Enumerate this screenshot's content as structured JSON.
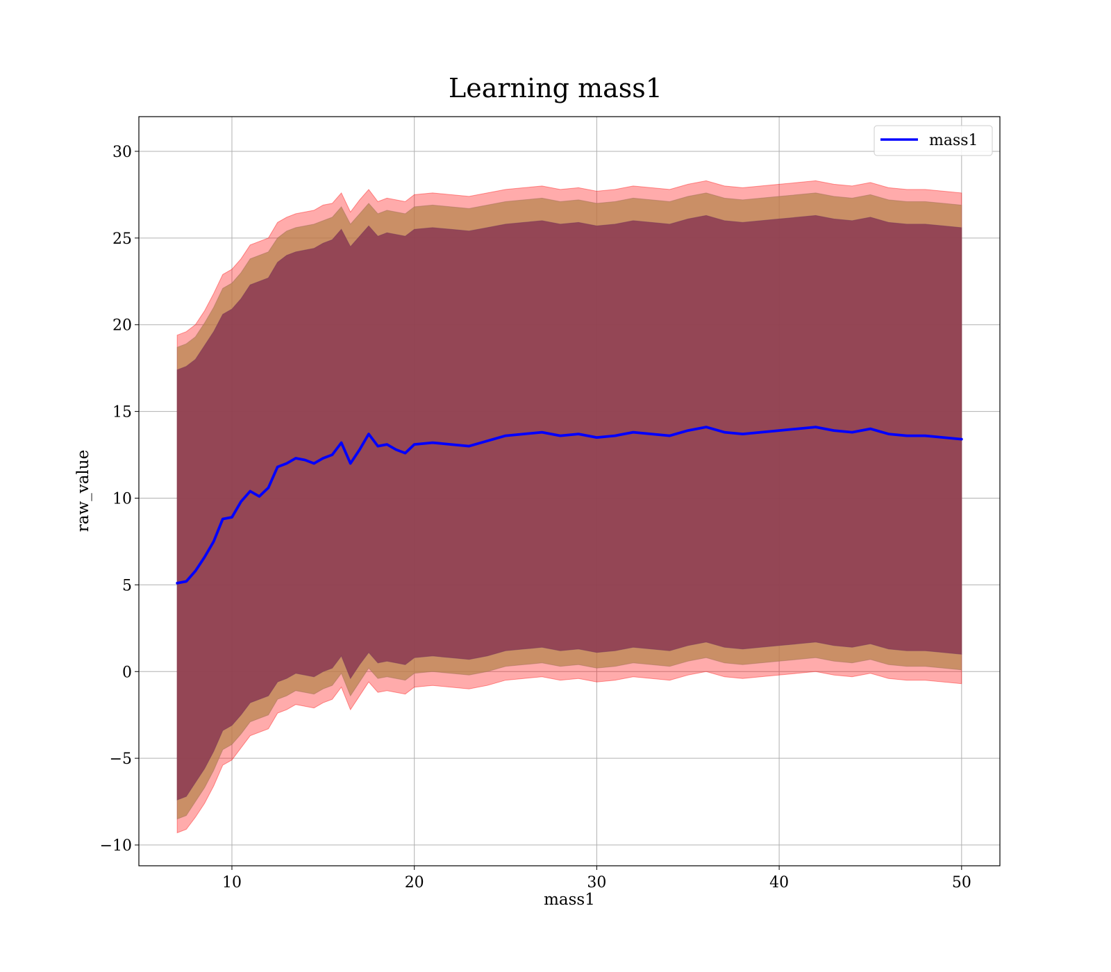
{
  "chart_data": {
    "type": "line",
    "title": "Learning mass1",
    "xlabel": "mass1",
    "ylabel": "raw_value",
    "xlim": [
      4.9,
      52.1
    ],
    "ylim": [
      -11.2,
      32.0
    ],
    "xticks": [
      10,
      20,
      30,
      40,
      50
    ],
    "xtick_labels": [
      "10",
      "20",
      "30",
      "40",
      "50"
    ],
    "yticks": [
      -10,
      -5,
      0,
      5,
      10,
      15,
      20,
      25,
      30
    ],
    "ytick_labels": [
      "−10",
      "−5",
      "0",
      "5",
      "10",
      "15",
      "20",
      "25",
      "30"
    ],
    "grid": true,
    "legend": {
      "position": "top-right",
      "entries": [
        "mass1"
      ]
    },
    "colors": {
      "line": "#0000ff",
      "band_outer": "#ff0000",
      "band_mid": "#b8864f",
      "band_inner": "#8b3a52"
    },
    "x": [
      7.0,
      7.5,
      8.0,
      8.5,
      9.0,
      9.5,
      10.0,
      10.5,
      11.0,
      11.5,
      12.0,
      12.5,
      13.0,
      13.5,
      14.0,
      14.5,
      15.0,
      15.5,
      16.0,
      16.5,
      17.0,
      17.5,
      18.0,
      18.5,
      19.0,
      19.5,
      20.0,
      21.0,
      22.0,
      23.0,
      24.0,
      25.0,
      26.0,
      27.0,
      28.0,
      29.0,
      30.0,
      31.0,
      32.0,
      33.0,
      34.0,
      35.0,
      36.0,
      37.0,
      38.0,
      39.0,
      40.0,
      41.0,
      42.0,
      43.0,
      44.0,
      45.0,
      46.0,
      47.0,
      48.0,
      49.0,
      50.0
    ],
    "series": [
      {
        "name": "mass1",
        "values": [
          5.1,
          5.2,
          5.8,
          6.6,
          7.5,
          8.8,
          8.9,
          9.8,
          10.4,
          10.1,
          10.6,
          11.8,
          12.0,
          12.3,
          12.2,
          12.0,
          12.3,
          12.5,
          13.2,
          12.0,
          12.8,
          13.7,
          13.0,
          13.1,
          12.8,
          12.6,
          13.1,
          13.2,
          13.1,
          13.0,
          13.3,
          13.6,
          13.7,
          13.8,
          13.6,
          13.7,
          13.5,
          13.6,
          13.8,
          13.7,
          13.6,
          13.9,
          14.1,
          13.8,
          13.7,
          13.8,
          13.9,
          14.0,
          14.1,
          13.9,
          13.8,
          14.0,
          13.7,
          13.6,
          13.6,
          13.5,
          13.4
        ]
      }
    ],
    "bands": {
      "outer_upper": [
        19.4,
        19.6,
        20.0,
        20.8,
        21.8,
        22.9,
        23.2,
        23.8,
        24.6,
        24.8,
        25.0,
        25.9,
        26.2,
        26.4,
        26.5,
        26.6,
        26.9,
        27.0,
        27.6,
        26.5,
        27.2,
        27.8,
        27.1,
        27.3,
        27.2,
        27.1,
        27.5,
        27.6,
        27.5,
        27.4,
        27.6,
        27.8,
        27.9,
        28.0,
        27.8,
        27.9,
        27.7,
        27.8,
        28.0,
        27.9,
        27.8,
        28.1,
        28.3,
        28.0,
        27.9,
        28.0,
        28.1,
        28.2,
        28.3,
        28.1,
        28.0,
        28.2,
        27.9,
        27.8,
        27.8,
        27.7,
        27.6
      ],
      "mid_upper": [
        18.7,
        18.9,
        19.3,
        20.1,
        21.0,
        22.1,
        22.4,
        23.0,
        23.8,
        24.0,
        24.2,
        25.0,
        25.4,
        25.6,
        25.7,
        25.8,
        26.0,
        26.2,
        26.8,
        25.8,
        26.4,
        27.0,
        26.4,
        26.6,
        26.5,
        26.4,
        26.8,
        26.9,
        26.8,
        26.7,
        26.9,
        27.1,
        27.2,
        27.3,
        27.1,
        27.2,
        27.0,
        27.1,
        27.3,
        27.2,
        27.1,
        27.4,
        27.6,
        27.3,
        27.2,
        27.3,
        27.4,
        27.5,
        27.6,
        27.4,
        27.3,
        27.5,
        27.2,
        27.1,
        27.1,
        27.0,
        26.9
      ],
      "inner_upper": [
        17.4,
        17.6,
        18.0,
        18.8,
        19.6,
        20.6,
        20.9,
        21.5,
        22.3,
        22.5,
        22.7,
        23.6,
        24.0,
        24.2,
        24.3,
        24.4,
        24.7,
        24.9,
        25.5,
        24.5,
        25.1,
        25.7,
        25.1,
        25.3,
        25.2,
        25.1,
        25.5,
        25.6,
        25.5,
        25.4,
        25.6,
        25.8,
        25.9,
        26.0,
        25.8,
        25.9,
        25.7,
        25.8,
        26.0,
        25.9,
        25.8,
        26.1,
        26.3,
        26.0,
        25.9,
        26.0,
        26.1,
        26.2,
        26.3,
        26.1,
        26.0,
        26.2,
        25.9,
        25.8,
        25.8,
        25.7,
        25.6
      ],
      "inner_lower": [
        -7.4,
        -7.2,
        -6.4,
        -5.6,
        -4.6,
        -3.4,
        -3.1,
        -2.5,
        -1.8,
        -1.6,
        -1.4,
        -0.6,
        -0.4,
        -0.1,
        -0.2,
        -0.3,
        0.0,
        0.2,
        0.9,
        -0.4,
        0.4,
        1.1,
        0.5,
        0.6,
        0.5,
        0.4,
        0.8,
        0.9,
        0.8,
        0.7,
        0.9,
        1.2,
        1.3,
        1.4,
        1.2,
        1.3,
        1.1,
        1.2,
        1.4,
        1.3,
        1.2,
        1.5,
        1.7,
        1.4,
        1.3,
        1.4,
        1.5,
        1.6,
        1.7,
        1.5,
        1.4,
        1.6,
        1.3,
        1.2,
        1.2,
        1.1,
        1.0
      ],
      "mid_lower": [
        -8.5,
        -8.3,
        -7.5,
        -6.7,
        -5.7,
        -4.5,
        -4.2,
        -3.6,
        -2.9,
        -2.7,
        -2.5,
        -1.6,
        -1.4,
        -1.1,
        -1.2,
        -1.3,
        -1.0,
        -0.8,
        -0.1,
        -1.4,
        -0.6,
        0.2,
        -0.4,
        -0.3,
        -0.4,
        -0.5,
        -0.1,
        0.0,
        -0.1,
        -0.2,
        0.0,
        0.3,
        0.4,
        0.5,
        0.3,
        0.4,
        0.2,
        0.3,
        0.5,
        0.4,
        0.3,
        0.6,
        0.8,
        0.5,
        0.4,
        0.5,
        0.6,
        0.7,
        0.8,
        0.6,
        0.5,
        0.7,
        0.4,
        0.3,
        0.3,
        0.2,
        0.1
      ],
      "outer_lower": [
        -9.3,
        -9.1,
        -8.4,
        -7.6,
        -6.6,
        -5.4,
        -5.1,
        -4.4,
        -3.7,
        -3.5,
        -3.3,
        -2.4,
        -2.2,
        -1.9,
        -2.0,
        -2.1,
        -1.8,
        -1.6,
        -0.9,
        -2.2,
        -1.4,
        -0.6,
        -1.2,
        -1.1,
        -1.2,
        -1.3,
        -0.9,
        -0.8,
        -0.9,
        -1.0,
        -0.8,
        -0.5,
        -0.4,
        -0.3,
        -0.5,
        -0.4,
        -0.6,
        -0.5,
        -0.3,
        -0.4,
        -0.5,
        -0.2,
        0.0,
        -0.3,
        -0.4,
        -0.3,
        -0.2,
        -0.1,
        0.0,
        -0.2,
        -0.3,
        -0.1,
        -0.4,
        -0.5,
        -0.5,
        -0.6,
        -0.7
      ]
    }
  }
}
